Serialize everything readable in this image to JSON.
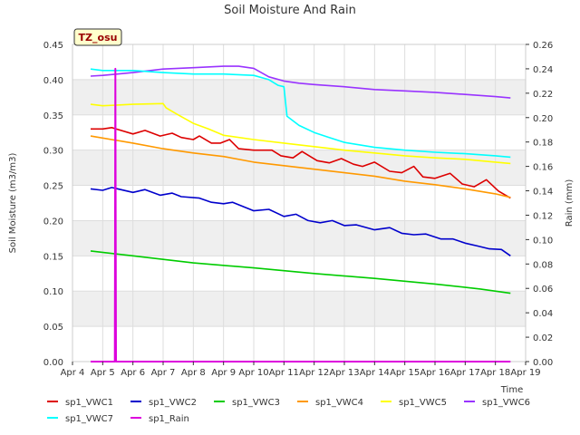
{
  "chart_data": {
    "type": "line",
    "title": "Soil Moisture And Rain",
    "ylabel": "Soil Moisture (m3/m3)",
    "y2label": "Rain (mm)",
    "xlabel": "Time",
    "badge": "TZ_osu",
    "ylim": [
      0.0,
      0.45
    ],
    "y2lim": [
      0.0,
      0.26
    ],
    "yticks": [
      "0.00",
      "0.05",
      "0.10",
      "0.15",
      "0.20",
      "0.25",
      "0.30",
      "0.35",
      "0.40",
      "0.45"
    ],
    "y2ticks": [
      "0.00",
      "0.02",
      "0.04",
      "0.06",
      "0.08",
      "0.10",
      "0.12",
      "0.14",
      "0.16",
      "0.18",
      "0.20",
      "0.22",
      "0.24",
      "0.26"
    ],
    "xticks": [
      "Apr 4",
      "Apr 5",
      "Apr 6",
      "Apr 7",
      "Apr 8",
      "Apr 9",
      "Apr 10",
      "Apr 11",
      "Apr 12",
      "Apr 13",
      "Apr 14",
      "Apr 15",
      "Apr 16",
      "Apr 17",
      "Apr 18",
      "Apr 19"
    ],
    "grid": true,
    "legend_position": "bottom",
    "series": [
      {
        "name": "sp1_VWC1",
        "color": "#dd0000",
        "axis": "left",
        "x": [
          0.6,
          1.0,
          1.3,
          2.0,
          2.4,
          2.9,
          3.3,
          3.6,
          4.0,
          4.2,
          4.6,
          4.9,
          5.2,
          5.5,
          6.0,
          6.6,
          6.9,
          7.3,
          7.6,
          8.1,
          8.5,
          8.9,
          9.3,
          9.6,
          10.0,
          10.5,
          10.9,
          11.3,
          11.6,
          12.0,
          12.5,
          12.9,
          13.3,
          13.7,
          14.1,
          14.5
        ],
        "y": [
          0.33,
          0.33,
          0.332,
          0.323,
          0.328,
          0.32,
          0.324,
          0.318,
          0.315,
          0.32,
          0.31,
          0.31,
          0.315,
          0.302,
          0.3,
          0.3,
          0.292,
          0.289,
          0.298,
          0.285,
          0.282,
          0.288,
          0.28,
          0.277,
          0.283,
          0.27,
          0.268,
          0.277,
          0.262,
          0.26,
          0.267,
          0.252,
          0.248,
          0.258,
          0.242,
          0.232
        ]
      },
      {
        "name": "sp1_VWC2",
        "color": "#0000cc",
        "axis": "left",
        "x": [
          0.6,
          1.0,
          1.3,
          2.0,
          2.4,
          2.9,
          3.3,
          3.6,
          4.2,
          4.6,
          5.0,
          5.3,
          6.0,
          6.5,
          7.0,
          7.4,
          7.8,
          8.2,
          8.6,
          9.0,
          9.4,
          10.0,
          10.5,
          10.9,
          11.3,
          11.7,
          12.2,
          12.6,
          13.0,
          13.4,
          13.8,
          14.2,
          14.5
        ],
        "y": [
          0.245,
          0.243,
          0.247,
          0.24,
          0.244,
          0.236,
          0.239,
          0.234,
          0.232,
          0.226,
          0.224,
          0.226,
          0.214,
          0.216,
          0.206,
          0.209,
          0.2,
          0.197,
          0.2,
          0.193,
          0.194,
          0.187,
          0.19,
          0.182,
          0.18,
          0.181,
          0.174,
          0.174,
          0.168,
          0.164,
          0.16,
          0.159,
          0.15
        ]
      },
      {
        "name": "sp1_VWC3",
        "color": "#00cc00",
        "axis": "left",
        "x": [
          0.6,
          2.0,
          4.0,
          6.0,
          8.0,
          10.0,
          12.0,
          13.5,
          14.5
        ],
        "y": [
          0.157,
          0.15,
          0.14,
          0.133,
          0.125,
          0.118,
          0.11,
          0.103,
          0.097
        ]
      },
      {
        "name": "sp1_VWC4",
        "color": "#ff9900",
        "axis": "left",
        "x": [
          0.6,
          2.0,
          3.0,
          4.0,
          5.0,
          6.0,
          7.0,
          8.0,
          9.0,
          10.0,
          11.0,
          12.0,
          13.0,
          14.0,
          14.5
        ],
        "y": [
          0.32,
          0.31,
          0.302,
          0.296,
          0.291,
          0.283,
          0.278,
          0.273,
          0.268,
          0.263,
          0.256,
          0.251,
          0.245,
          0.238,
          0.233
        ]
      },
      {
        "name": "sp1_VWC5",
        "color": "#ffff00",
        "axis": "left",
        "x": [
          0.6,
          1.0,
          2.0,
          3.0,
          3.1,
          3.3,
          3.5,
          4.0,
          4.5,
          5.0,
          6.0,
          7.0,
          8.0,
          9.0,
          10.0,
          11.0,
          12.0,
          13.0,
          14.0,
          14.5
        ],
        "y": [
          0.365,
          0.363,
          0.365,
          0.366,
          0.36,
          0.355,
          0.35,
          0.338,
          0.33,
          0.321,
          0.315,
          0.31,
          0.305,
          0.3,
          0.296,
          0.292,
          0.289,
          0.287,
          0.283,
          0.281
        ]
      },
      {
        "name": "sp1_VWC6",
        "color": "#9933ff",
        "axis": "left",
        "x": [
          0.6,
          1.0,
          2.0,
          3.0,
          4.0,
          5.0,
          5.5,
          6.0,
          6.5,
          7.0,
          7.5,
          8.0,
          9.0,
          10.0,
          11.0,
          12.0,
          13.0,
          14.0,
          14.5
        ],
        "y": [
          0.405,
          0.406,
          0.41,
          0.415,
          0.417,
          0.419,
          0.419,
          0.416,
          0.404,
          0.398,
          0.395,
          0.393,
          0.39,
          0.386,
          0.384,
          0.382,
          0.379,
          0.376,
          0.374
        ]
      },
      {
        "name": "sp1_VWC7",
        "color": "#00ffff",
        "axis": "left",
        "x": [
          0.6,
          1.0,
          2.0,
          3.0,
          4.0,
          5.0,
          6.0,
          6.5,
          6.8,
          7.0,
          7.1,
          7.5,
          8.0,
          8.5,
          9.0,
          10.0,
          11.0,
          12.0,
          13.0,
          14.0,
          14.5
        ],
        "y": [
          0.415,
          0.413,
          0.413,
          0.41,
          0.408,
          0.408,
          0.406,
          0.4,
          0.392,
          0.39,
          0.348,
          0.335,
          0.325,
          0.318,
          0.311,
          0.304,
          0.3,
          0.297,
          0.295,
          0.292,
          0.29
        ]
      },
      {
        "name": "sp1_Rain",
        "color": "#dd00dd",
        "axis": "right",
        "x": [
          0.6,
          1.4,
          1.42,
          1.44,
          1.46,
          14.5
        ],
        "y": [
          0.0,
          0.0,
          0.24,
          0.0,
          0.0,
          0.0
        ]
      }
    ]
  }
}
